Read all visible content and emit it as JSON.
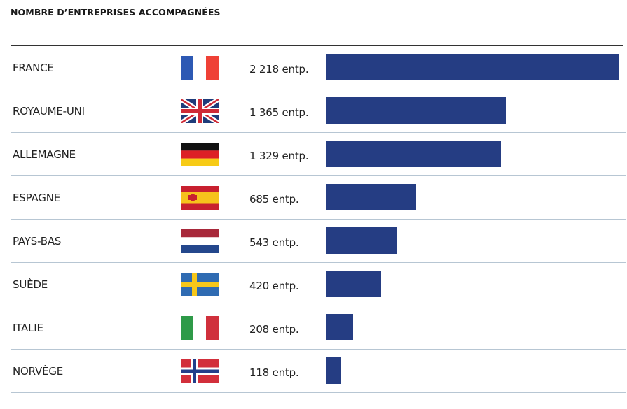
{
  "chart_data": {
    "type": "bar",
    "title": "NOMBRE D’ENTREPRISES ACCOMPAGNÉES",
    "categories": [
      "FRANCE",
      "ROYAUME-UNI",
      "ALLEMAGNE",
      "ESPAGNE",
      "PAYS-BAS",
      "SUÈDE",
      "ITALIE",
      "NORVÈGE"
    ],
    "values": [
      2218,
      1365,
      1329,
      685,
      543,
      420,
      208,
      118
    ],
    "value_labels": [
      "2 218 entp.",
      "1 365 entp.",
      "1 329 entp.",
      "685 entp.",
      "543 entp.",
      "420 entp.",
      "208 entp.",
      "118 entp."
    ],
    "flag_icons": [
      "france-flag-icon",
      "uk-flag-icon",
      "germany-flag-icon",
      "spain-flag-icon",
      "netherlands-flag-icon",
      "sweden-flag-icon",
      "italy-flag-icon",
      "norway-flag-icon"
    ],
    "orientation": "horizontal",
    "bar_color": "#253d83",
    "xlim": [
      0,
      2218
    ],
    "grid": false,
    "xlabel": "",
    "ylabel": ""
  }
}
